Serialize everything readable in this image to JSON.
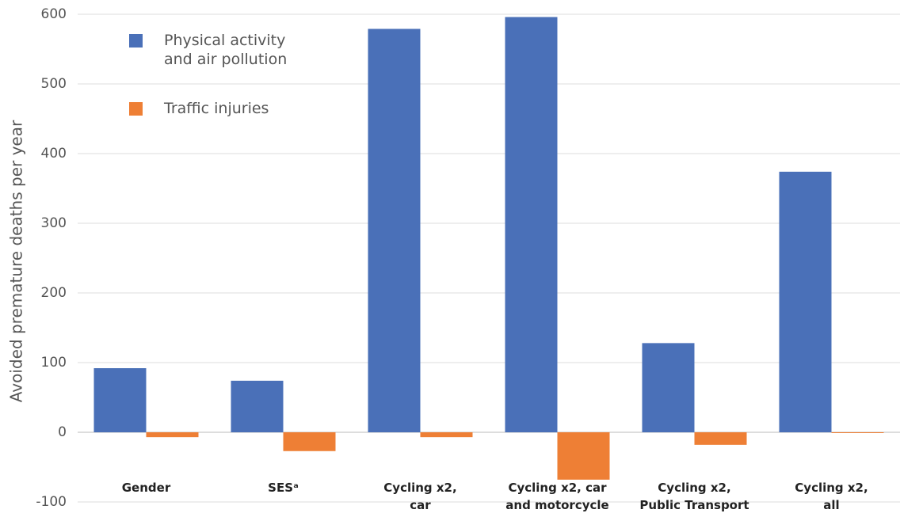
{
  "chart_data": {
    "type": "bar",
    "y_label": "Avoided premature deaths per year",
    "categories": [
      [
        "Gender"
      ],
      [
        "SESᵃ"
      ],
      [
        "Cycling x2,",
        "car"
      ],
      [
        "Cycling x2, car",
        "and motorcycle"
      ],
      [
        "Cycling x2,",
        "Public Transport"
      ],
      [
        "Cycling x2,",
        "all"
      ]
    ],
    "series": [
      {
        "name": "Physical activity and air pollution",
        "color": "#4a70b8",
        "values": [
          92,
          74,
          579,
          596,
          128,
          374
        ]
      },
      {
        "name": "Traffic injuries",
        "color": "#ee7f35",
        "values": [
          -7,
          -27,
          -7,
          -68,
          -18,
          -1
        ]
      }
    ],
    "ylim": [
      -100,
      600
    ],
    "yticks": [
      -100,
      0,
      100,
      200,
      300,
      400,
      500,
      600
    ],
    "grid": true,
    "legend": "upper left"
  }
}
